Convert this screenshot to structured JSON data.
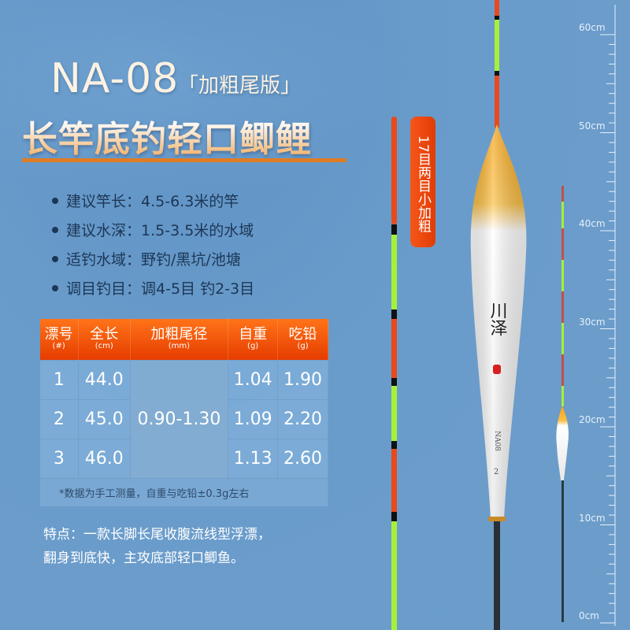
{
  "header": {
    "model": "NA-08",
    "edition": "「加粗尾版」",
    "headline": "长竿底钓轻口鲫鲤"
  },
  "specs": [
    {
      "label": "建议竿长：",
      "value": "4.5-6.3米的竿"
    },
    {
      "label": "建议水深：",
      "value": "1.5-3.5米的水域"
    },
    {
      "label": "适钓水域：",
      "value": "野钓/黑坑/池塘"
    },
    {
      "label": "调目钓目：",
      "value": "调4-5目 钓2-3目"
    }
  ],
  "table": {
    "headers": [
      {
        "label": "漂号",
        "unit": "(#)"
      },
      {
        "label": "全长",
        "unit": "(cm)"
      },
      {
        "label": "加粗尾径",
        "unit": "(mm)"
      },
      {
        "label": "自重",
        "unit": "(g)"
      },
      {
        "label": "吃铅",
        "unit": "(g)"
      }
    ],
    "rows": [
      {
        "no": "1",
        "length": "44.0",
        "weight": "1.04",
        "lead": "1.90"
      },
      {
        "no": "2",
        "length": "45.0",
        "weight": "1.09",
        "lead": "2.20"
      },
      {
        "no": "3",
        "length": "46.0",
        "weight": "1.13",
        "lead": "2.60"
      }
    ],
    "tail_diameter": "0.90-1.30",
    "note": "*数据为手工测量，自重与吃铅±0.3g左右"
  },
  "features": {
    "line1": "特点：一款长脚长尾收腹流线型浮漂，",
    "line2": "翻身到底快，主攻底部轻口鲫鱼。"
  },
  "badge": "17目两目小加粗",
  "float_marking": {
    "brand": "川泽",
    "model": "NA08",
    "number": "2"
  },
  "ruler": {
    "labels": [
      "60cm",
      "50cm",
      "40cm",
      "30cm",
      "20cm",
      "10cm",
      "0cm"
    ]
  },
  "colors": {
    "background": "#6a9ccb",
    "accent": "#f05a14",
    "tip_green": "#a6f03a",
    "tip_red": "#e84a1c"
  }
}
